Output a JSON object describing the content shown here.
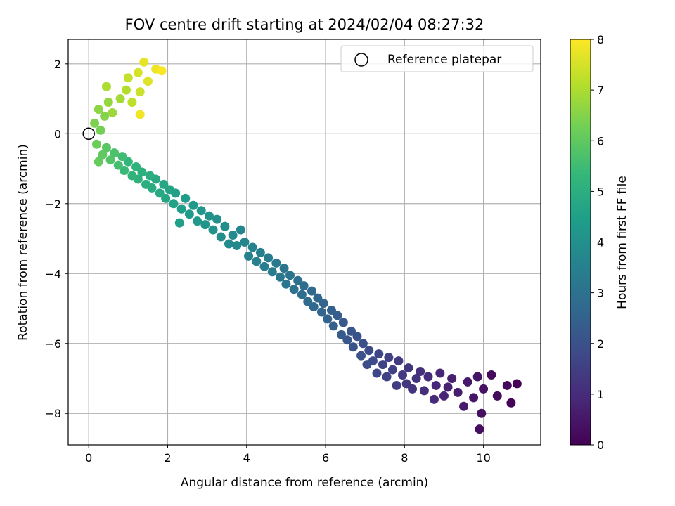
{
  "chart_data": {
    "type": "scatter",
    "title": "FOV centre drift starting at 2024/02/04 08:27:32",
    "xlabel": "Angular distance from reference (arcmin)",
    "ylabel": "Rotation from reference (arcmin)",
    "xlim": [
      -0.52,
      11.45
    ],
    "ylim": [
      -8.9,
      2.7
    ],
    "xticks": [
      0,
      2,
      4,
      6,
      8,
      10
    ],
    "yticks": [
      -8,
      -6,
      -4,
      -2,
      0,
      2
    ],
    "xtick_labels": [
      "0",
      "2",
      "4",
      "6",
      "8",
      "10"
    ],
    "ytick_labels": [
      "−8",
      "−6",
      "−4",
      "−2",
      "0",
      "2"
    ],
    "grid": true,
    "legend": {
      "placement": "top-right",
      "entries": [
        "Reference platepar"
      ]
    },
    "reference_point": {
      "x": 0,
      "y": 0,
      "label": "Reference platepar"
    },
    "colorbar": {
      "label": "Hours from first FF file",
      "range": [
        0,
        8
      ],
      "ticks": [
        0,
        1,
        2,
        3,
        4,
        5,
        6,
        7,
        8
      ],
      "tick_labels": [
        "0",
        "1",
        "2",
        "3",
        "4",
        "5",
        "6",
        "7",
        "8"
      ],
      "colormap": "viridis"
    },
    "color_stops": [
      "#440154",
      "#482878",
      "#3e4989",
      "#31688e",
      "#26828e",
      "#1f9e89",
      "#35b779",
      "#6ece58",
      "#b5de2b",
      "#fde725"
    ],
    "columns": [
      "x_arcmin",
      "y_arcmin",
      "hours"
    ],
    "points": [
      [
        10.85,
        -7.15,
        0.05
      ],
      [
        10.7,
        -7.7,
        0.1
      ],
      [
        10.6,
        -7.2,
        0.15
      ],
      [
        10.2,
        -6.9,
        0.2
      ],
      [
        10.35,
        -7.5,
        0.25
      ],
      [
        9.9,
        -8.45,
        0.3
      ],
      [
        9.95,
        -8.0,
        0.35
      ],
      [
        10.0,
        -7.3,
        0.4
      ],
      [
        9.85,
        -6.95,
        0.45
      ],
      [
        9.75,
        -7.55,
        0.5
      ],
      [
        9.6,
        -7.1,
        0.55
      ],
      [
        9.5,
        -7.8,
        0.6
      ],
      [
        9.35,
        -7.4,
        0.65
      ],
      [
        9.2,
        -7.0,
        0.7
      ],
      [
        9.1,
        -7.25,
        0.75
      ],
      [
        9.0,
        -7.5,
        0.8
      ],
      [
        8.9,
        -6.85,
        0.85
      ],
      [
        8.8,
        -7.2,
        0.9
      ],
      [
        8.75,
        -7.6,
        0.95
      ],
      [
        8.6,
        -6.95,
        1.0
      ],
      [
        8.5,
        -7.35,
        1.05
      ],
      [
        8.4,
        -6.8,
        1.1
      ],
      [
        8.3,
        -7.0,
        1.15
      ],
      [
        8.2,
        -7.3,
        1.2
      ],
      [
        8.1,
        -6.7,
        1.25
      ],
      [
        8.05,
        -7.15,
        1.3
      ],
      [
        7.95,
        -6.9,
        1.35
      ],
      [
        7.85,
        -6.5,
        1.4
      ],
      [
        7.8,
        -7.2,
        1.45
      ],
      [
        7.7,
        -6.75,
        1.5
      ],
      [
        7.6,
        -6.4,
        1.55
      ],
      [
        7.55,
        -6.95,
        1.6
      ],
      [
        7.45,
        -6.6,
        1.65
      ],
      [
        7.35,
        -6.3,
        1.7
      ],
      [
        7.3,
        -6.85,
        1.75
      ],
      [
        7.2,
        -6.5,
        1.8
      ],
      [
        7.1,
        -6.2,
        1.85
      ],
      [
        7.05,
        -6.6,
        1.9
      ],
      [
        6.95,
        -6.0,
        1.95
      ],
      [
        6.9,
        -6.35,
        2.0
      ],
      [
        6.8,
        -5.8,
        2.05
      ],
      [
        6.7,
        -6.1,
        2.1
      ],
      [
        6.65,
        -5.65,
        2.15
      ],
      [
        6.55,
        -5.9,
        2.2
      ],
      [
        6.45,
        -5.4,
        2.25
      ],
      [
        6.4,
        -5.75,
        2.3
      ],
      [
        6.3,
        -5.2,
        2.35
      ],
      [
        6.2,
        -5.5,
        2.4
      ],
      [
        6.15,
        -5.05,
        2.45
      ],
      [
        6.05,
        -5.3,
        2.5
      ],
      [
        5.95,
        -4.85,
        2.55
      ],
      [
        5.9,
        -5.1,
        2.6
      ],
      [
        5.8,
        -4.7,
        2.65
      ],
      [
        5.7,
        -4.95,
        2.7
      ],
      [
        5.65,
        -4.5,
        2.75
      ],
      [
        5.55,
        -4.8,
        2.8
      ],
      [
        5.45,
        -4.35,
        2.85
      ],
      [
        5.4,
        -4.6,
        2.9
      ],
      [
        5.3,
        -4.2,
        2.95
      ],
      [
        5.2,
        -4.45,
        3.0
      ],
      [
        5.1,
        -4.05,
        3.05
      ],
      [
        5.0,
        -4.3,
        3.1
      ],
      [
        4.95,
        -3.85,
        3.15
      ],
      [
        4.85,
        -4.1,
        3.2
      ],
      [
        4.75,
        -3.7,
        3.25
      ],
      [
        4.65,
        -3.95,
        3.3
      ],
      [
        4.55,
        -3.55,
        3.35
      ],
      [
        4.45,
        -3.8,
        3.4
      ],
      [
        4.35,
        -3.4,
        3.45
      ],
      [
        4.25,
        -3.65,
        3.5
      ],
      [
        4.15,
        -3.25,
        3.55
      ],
      [
        4.05,
        -3.5,
        3.6
      ],
      [
        3.95,
        -3.1,
        3.65
      ],
      [
        3.85,
        -2.75,
        3.7
      ],
      [
        3.75,
        -3.2,
        3.75
      ],
      [
        3.65,
        -2.9,
        3.8
      ],
      [
        3.55,
        -3.15,
        3.85
      ],
      [
        3.45,
        -2.65,
        3.9
      ],
      [
        3.35,
        -2.95,
        3.95
      ],
      [
        3.25,
        -2.45,
        4.0
      ],
      [
        3.15,
        -2.75,
        4.05
      ],
      [
        3.05,
        -2.35,
        4.1
      ],
      [
        2.95,
        -2.6,
        4.15
      ],
      [
        2.85,
        -2.2,
        4.2
      ],
      [
        2.75,
        -2.5,
        4.25
      ],
      [
        2.65,
        -2.05,
        4.3
      ],
      [
        2.55,
        -2.3,
        4.35
      ],
      [
        2.45,
        -1.85,
        4.4
      ],
      [
        2.35,
        -2.15,
        4.45
      ],
      [
        2.3,
        -2.55,
        4.5
      ],
      [
        2.2,
        -1.7,
        4.55
      ],
      [
        2.15,
        -2.0,
        4.6
      ],
      [
        2.05,
        -1.6,
        4.65
      ],
      [
        1.95,
        -1.85,
        4.7
      ],
      [
        1.9,
        -1.45,
        4.75
      ],
      [
        1.8,
        -1.7,
        4.8
      ],
      [
        1.7,
        -1.3,
        4.85
      ],
      [
        1.6,
        -1.55,
        4.9
      ],
      [
        1.55,
        -1.2,
        4.95
      ],
      [
        1.45,
        -1.45,
        5.0
      ],
      [
        1.35,
        -1.1,
        5.05
      ],
      [
        1.25,
        -1.3,
        5.1
      ],
      [
        1.2,
        -0.95,
        5.15
      ],
      [
        1.1,
        -1.2,
        5.2
      ],
      [
        1.0,
        -0.8,
        5.3
      ],
      [
        0.9,
        -1.05,
        5.4
      ],
      [
        0.85,
        -0.65,
        5.5
      ],
      [
        0.75,
        -0.9,
        5.6
      ],
      [
        0.65,
        -0.55,
        5.7
      ],
      [
        0.55,
        -0.75,
        5.8
      ],
      [
        0.45,
        -0.4,
        5.9
      ],
      [
        0.35,
        -0.6,
        6.0
      ],
      [
        0.25,
        -0.8,
        6.1
      ],
      [
        0.2,
        -0.3,
        6.2
      ],
      [
        0.3,
        0.1,
        6.3
      ],
      [
        0.15,
        0.3,
        6.4
      ],
      [
        0.4,
        0.5,
        6.5
      ],
      [
        0.25,
        0.7,
        6.6
      ],
      [
        0.5,
        0.9,
        6.7
      ],
      [
        0.6,
        0.6,
        6.8
      ],
      [
        0.8,
        1.0,
        6.9
      ],
      [
        0.45,
        1.35,
        7.0
      ],
      [
        0.95,
        1.25,
        7.1
      ],
      [
        1.1,
        0.9,
        7.2
      ],
      [
        1.0,
        1.6,
        7.3
      ],
      [
        1.3,
        1.2,
        7.4
      ],
      [
        1.25,
        1.75,
        7.5
      ],
      [
        1.5,
        1.5,
        7.6
      ],
      [
        1.4,
        2.05,
        7.7
      ],
      [
        1.7,
        1.85,
        7.8
      ],
      [
        1.3,
        0.55,
        7.85
      ],
      [
        1.85,
        1.8,
        7.95
      ]
    ]
  }
}
